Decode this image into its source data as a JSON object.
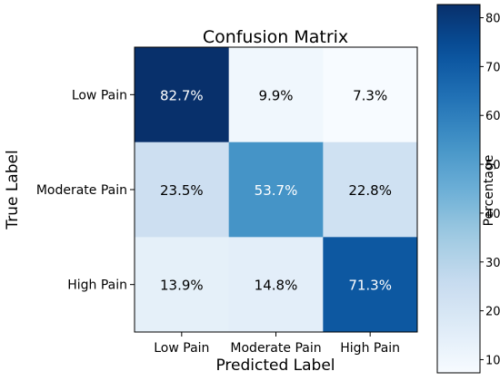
{
  "chart_data": {
    "type": "heatmap",
    "title": "Confusion Matrix",
    "xlabel": "Predicted Label",
    "ylabel": "True Label",
    "x_categories": [
      "Low Pain",
      "Moderate Pain",
      "High Pain"
    ],
    "y_categories": [
      "Low Pain",
      "Moderate Pain",
      "High Pain"
    ],
    "values": [
      [
        82.7,
        9.9,
        7.3
      ],
      [
        23.5,
        53.7,
        22.8
      ],
      [
        13.9,
        14.8,
        71.3
      ]
    ],
    "cell_labels": [
      [
        "82.7%",
        "9.9%",
        "7.3%"
      ],
      [
        "23.5%",
        "53.7%",
        "22.8%"
      ],
      [
        "13.9%",
        "14.8%",
        "71.3%"
      ]
    ],
    "colorbar": {
      "label": "Percentage",
      "range": [
        7.3,
        82.7
      ],
      "ticks": [
        10,
        20,
        30,
        40,
        50,
        60,
        70,
        80
      ],
      "colormap": "Blues"
    }
  }
}
